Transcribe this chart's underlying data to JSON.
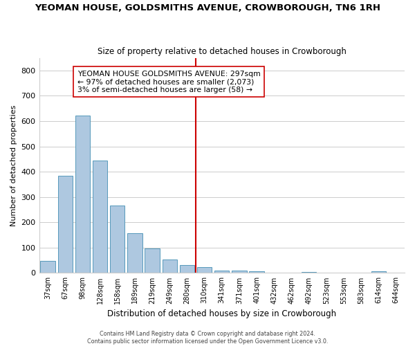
{
  "title": "YEOMAN HOUSE, GOLDSMITHS AVENUE, CROWBOROUGH, TN6 1RH",
  "subtitle": "Size of property relative to detached houses in Crowborough",
  "xlabel": "Distribution of detached houses by size in Crowborough",
  "ylabel": "Number of detached properties",
  "bar_values": [
    48,
    385,
    622,
    443,
    267,
    157,
    98,
    52,
    32,
    22,
    10,
    10,
    8,
    0,
    0,
    5,
    0,
    0,
    0,
    7,
    0
  ],
  "bar_labels": [
    "37sqm",
    "67sqm",
    "98sqm",
    "128sqm",
    "158sqm",
    "189sqm",
    "219sqm",
    "249sqm",
    "280sqm",
    "310sqm",
    "341sqm",
    "371sqm",
    "401sqm",
    "432sqm",
    "462sqm",
    "492sqm",
    "523sqm",
    "553sqm",
    "583sqm",
    "614sqm",
    "644sqm"
  ],
  "bar_color": "#aec8e0",
  "bar_edge_color": "#5599bb",
  "vline_x": 8.5,
  "vline_color": "#cc0000",
  "annotation_title": "YEOMAN HOUSE GOLDSMITHS AVENUE: 297sqm",
  "annotation_line1": "← 97% of detached houses are smaller (2,073)",
  "annotation_line2": "3% of semi-detached houses are larger (58) →",
  "ylim": [
    0,
    850
  ],
  "yticks": [
    0,
    100,
    200,
    300,
    400,
    500,
    600,
    700,
    800
  ],
  "footer1": "Contains HM Land Registry data © Crown copyright and database right 2024.",
  "footer2": "Contains public sector information licensed under the Open Government Licence v3.0."
}
